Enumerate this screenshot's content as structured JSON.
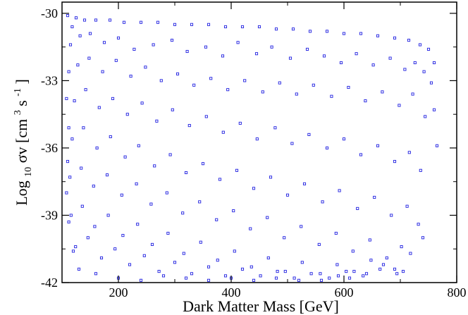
{
  "chart_data": {
    "type": "scatter",
    "title": "",
    "xlabel": "Dark Matter Mass [GeV]",
    "ylabel": {
      "base": "Log",
      "base_sub": "10",
      "sym": " σv [cm",
      "sup1": "3",
      "mid": " s",
      "sup2": "-1",
      "end": "]"
    },
    "xlim": [
      100,
      800
    ],
    "ylim": [
      -42,
      -29.5
    ],
    "xticks": [
      200,
      400,
      600,
      800
    ],
    "yticks": [
      -42,
      -39,
      -36,
      -33,
      -30
    ],
    "xtick_labels": [
      "200",
      "400",
      "600",
      "800"
    ],
    "ytick_labels": [
      "-42",
      "-39",
      "-36",
      "-33",
      "-30"
    ],
    "grid": false,
    "legend": "none",
    "marker": "open-square",
    "color": "#1f1fe0",
    "series": [
      {
        "points": [
          [
            110,
            -30.1
          ],
          [
            125,
            -30.2
          ],
          [
            140,
            -30.3
          ],
          [
            160,
            -30.3
          ],
          [
            185,
            -30.3
          ],
          [
            210,
            -30.4
          ],
          [
            240,
            -30.4
          ],
          [
            270,
            -30.4
          ],
          [
            300,
            -30.5
          ],
          [
            330,
            -30.5
          ],
          [
            360,
            -30.5
          ],
          [
            390,
            -30.6
          ],
          [
            420,
            -30.6
          ],
          [
            450,
            -30.6
          ],
          [
            480,
            -30.7
          ],
          [
            510,
            -30.7
          ],
          [
            540,
            -30.8
          ],
          [
            570,
            -30.8
          ],
          [
            600,
            -30.9
          ],
          [
            630,
            -30.9
          ],
          [
            660,
            -31.0
          ],
          [
            690,
            -31.1
          ],
          [
            715,
            -31.2
          ],
          [
            735,
            -31.4
          ],
          [
            750,
            -31.6
          ],
          [
            760,
            -32.2
          ],
          [
            755,
            -33.1
          ],
          [
            760,
            -34.3
          ],
          [
            765,
            -35.9
          ],
          [
            740,
            -40.0
          ],
          [
            718,
            -40.7
          ],
          [
            705,
            -41.5
          ],
          [
            690,
            -41.4
          ],
          [
            670,
            -41.2
          ],
          [
            640,
            -41.6
          ],
          [
            610,
            -41.8
          ],
          [
            590,
            -41.7
          ],
          [
            560,
            -41.9
          ],
          [
            520,
            -41.9
          ],
          [
            480,
            -41.8
          ],
          [
            440,
            -41.9
          ],
          [
            400,
            -41.8
          ],
          [
            360,
            -41.9
          ],
          [
            320,
            -41.8
          ],
          [
            280,
            -41.7
          ],
          [
            240,
            -41.9
          ],
          [
            200,
            -41.8
          ],
          [
            160,
            -41.6
          ],
          [
            130,
            -41.4
          ],
          [
            120,
            -40.6
          ],
          [
            112,
            -39.3
          ],
          [
            108,
            -38.0
          ],
          [
            110,
            -36.6
          ],
          [
            112,
            -35.1
          ],
          [
            108,
            -33.8
          ],
          [
            112,
            -32.6
          ],
          [
            115,
            -31.4
          ],
          [
            118,
            -30.6
          ],
          [
            132,
            -31.0
          ],
          [
            150,
            -30.9
          ],
          [
            175,
            -31.3
          ],
          [
            200,
            -31.1
          ],
          [
            228,
            -31.6
          ],
          [
            262,
            -31.4
          ],
          [
            295,
            -31.2
          ],
          [
            322,
            -31.7
          ],
          [
            355,
            -31.5
          ],
          [
            385,
            -31.9
          ],
          [
            412,
            -31.3
          ],
          [
            445,
            -31.8
          ],
          [
            472,
            -31.5
          ],
          [
            505,
            -32.0
          ],
          [
            535,
            -31.6
          ],
          [
            565,
            -31.9
          ],
          [
            595,
            -32.2
          ],
          [
            622,
            -31.8
          ],
          [
            652,
            -32.3
          ],
          [
            682,
            -32.0
          ],
          [
            708,
            -32.5
          ],
          [
            726,
            -32.2
          ],
          [
            742,
            -32.6
          ],
          [
            128,
            -32.3
          ],
          [
            148,
            -32.0
          ],
          [
            172,
            -32.6
          ],
          [
            196,
            -32.1
          ],
          [
            222,
            -32.8
          ],
          [
            248,
            -32.4
          ],
          [
            276,
            -33.0
          ],
          [
            305,
            -32.7
          ],
          [
            334,
            -33.2
          ],
          [
            364,
            -32.9
          ],
          [
            394,
            -33.4
          ],
          [
            424,
            -33.0
          ],
          [
            456,
            -33.5
          ],
          [
            486,
            -33.1
          ],
          [
            516,
            -33.6
          ],
          [
            546,
            -33.2
          ],
          [
            578,
            -33.7
          ],
          [
            608,
            -33.3
          ],
          [
            638,
            -33.9
          ],
          [
            668,
            -33.5
          ],
          [
            698,
            -34.1
          ],
          [
            722,
            -33.6
          ],
          [
            744,
            -34.6
          ],
          [
            122,
            -33.9
          ],
          [
            142,
            -33.4
          ],
          [
            166,
            -34.2
          ],
          [
            190,
            -33.8
          ],
          [
            216,
            -34.5
          ],
          [
            242,
            -34.0
          ],
          [
            268,
            -34.8
          ],
          [
            296,
            -34.3
          ],
          [
            326,
            -35.0
          ],
          [
            356,
            -34.6
          ],
          [
            386,
            -35.3
          ],
          [
            416,
            -34.9
          ],
          [
            446,
            -35.6
          ],
          [
            478,
            -35.1
          ],
          [
            508,
            -35.8
          ],
          [
            538,
            -35.4
          ],
          [
            570,
            -36.0
          ],
          [
            600,
            -35.6
          ],
          [
            630,
            -36.3
          ],
          [
            660,
            -35.9
          ],
          [
            690,
            -36.6
          ],
          [
            716,
            -36.2
          ],
          [
            736,
            -37.0
          ],
          [
            118,
            -35.6
          ],
          [
            138,
            -35.1
          ],
          [
            162,
            -36.0
          ],
          [
            186,
            -35.5
          ],
          [
            212,
            -36.4
          ],
          [
            236,
            -35.9
          ],
          [
            264,
            -36.8
          ],
          [
            292,
            -36.3
          ],
          [
            320,
            -37.1
          ],
          [
            350,
            -36.7
          ],
          [
            380,
            -37.4
          ],
          [
            410,
            -37.0
          ],
          [
            440,
            -37.8
          ],
          [
            470,
            -37.3
          ],
          [
            500,
            -38.1
          ],
          [
            530,
            -37.6
          ],
          [
            562,
            -38.4
          ],
          [
            592,
            -37.9
          ],
          [
            624,
            -38.7
          ],
          [
            654,
            -38.2
          ],
          [
            684,
            -39.0
          ],
          [
            712,
            -38.6
          ],
          [
            732,
            -39.4
          ],
          [
            114,
            -37.3
          ],
          [
            134,
            -36.9
          ],
          [
            156,
            -37.7
          ],
          [
            180,
            -37.2
          ],
          [
            206,
            -38.1
          ],
          [
            232,
            -37.6
          ],
          [
            258,
            -38.5
          ],
          [
            286,
            -38.0
          ],
          [
            314,
            -38.9
          ],
          [
            344,
            -38.4
          ],
          [
            374,
            -39.2
          ],
          [
            404,
            -38.8
          ],
          [
            434,
            -39.6
          ],
          [
            464,
            -39.1
          ],
          [
            494,
            -40.0
          ],
          [
            524,
            -39.5
          ],
          [
            556,
            -40.3
          ],
          [
            586,
            -39.8
          ],
          [
            616,
            -40.6
          ],
          [
            646,
            -40.1
          ],
          [
            676,
            -40.9
          ],
          [
            702,
            -40.4
          ],
          [
            116,
            -39.0
          ],
          [
            136,
            -38.6
          ],
          [
            158,
            -39.5
          ],
          [
            182,
            -39.0
          ],
          [
            208,
            -39.9
          ],
          [
            234,
            -39.4
          ],
          [
            260,
            -40.3
          ],
          [
            288,
            -39.8
          ],
          [
            316,
            -40.7
          ],
          [
            346,
            -40.2
          ],
          [
            376,
            -41.0
          ],
          [
            406,
            -40.6
          ],
          [
            436,
            -41.3
          ],
          [
            466,
            -40.9
          ],
          [
            496,
            -41.5
          ],
          [
            526,
            -41.1
          ],
          [
            558,
            -41.6
          ],
          [
            588,
            -41.2
          ],
          [
            618,
            -41.5
          ],
          [
            648,
            -41.0
          ],
          [
            124,
            -40.4
          ],
          [
            146,
            -40.0
          ],
          [
            170,
            -40.9
          ],
          [
            194,
            -40.5
          ],
          [
            220,
            -41.2
          ],
          [
            246,
            -40.8
          ],
          [
            272,
            -41.5
          ],
          [
            300,
            -41.1
          ],
          [
            330,
            -41.6
          ],
          [
            360,
            -41.3
          ],
          [
            390,
            -41.7
          ],
          [
            420,
            -41.4
          ],
          [
            452,
            -41.7
          ],
          [
            482,
            -41.5
          ],
          [
            512,
            -41.8
          ],
          [
            542,
            -41.6
          ],
          [
            574,
            -41.8
          ],
          [
            604,
            -41.5
          ],
          [
            634,
            -41.7
          ],
          [
            664,
            -41.4
          ],
          [
            694,
            -41.6
          ]
        ]
      }
    ]
  }
}
